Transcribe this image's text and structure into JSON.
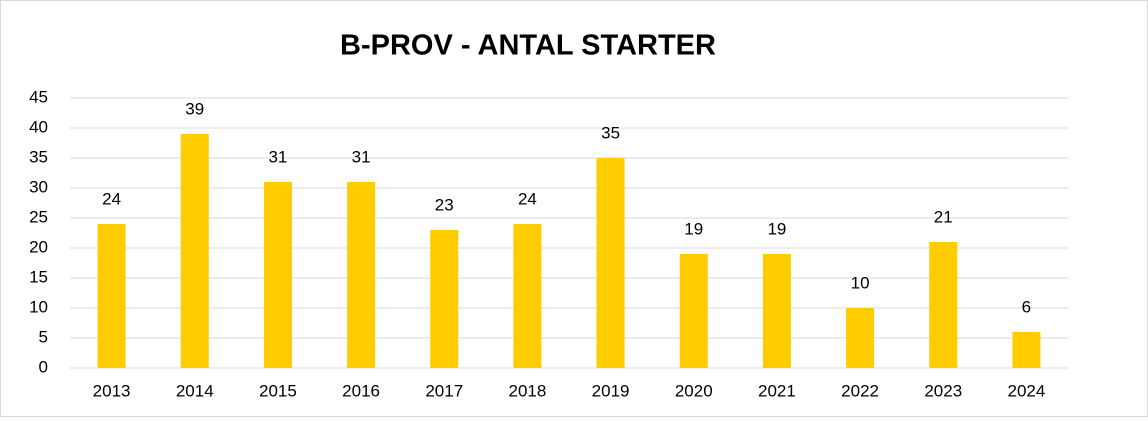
{
  "chart_data": {
    "type": "bar",
    "title": "B-PROV - ANTAL STARTER",
    "categories": [
      "2013",
      "2014",
      "2015",
      "2016",
      "2017",
      "2018",
      "2019",
      "2020",
      "2021",
      "2022",
      "2023",
      "2024"
    ],
    "values": [
      24,
      39,
      31,
      31,
      23,
      24,
      35,
      19,
      19,
      10,
      21,
      6
    ],
    "color": "#ffcc00",
    "ylim": [
      0,
      45
    ],
    "yticks": [
      0,
      5,
      10,
      15,
      20,
      25,
      30,
      35,
      40,
      45
    ],
    "grid": true
  }
}
